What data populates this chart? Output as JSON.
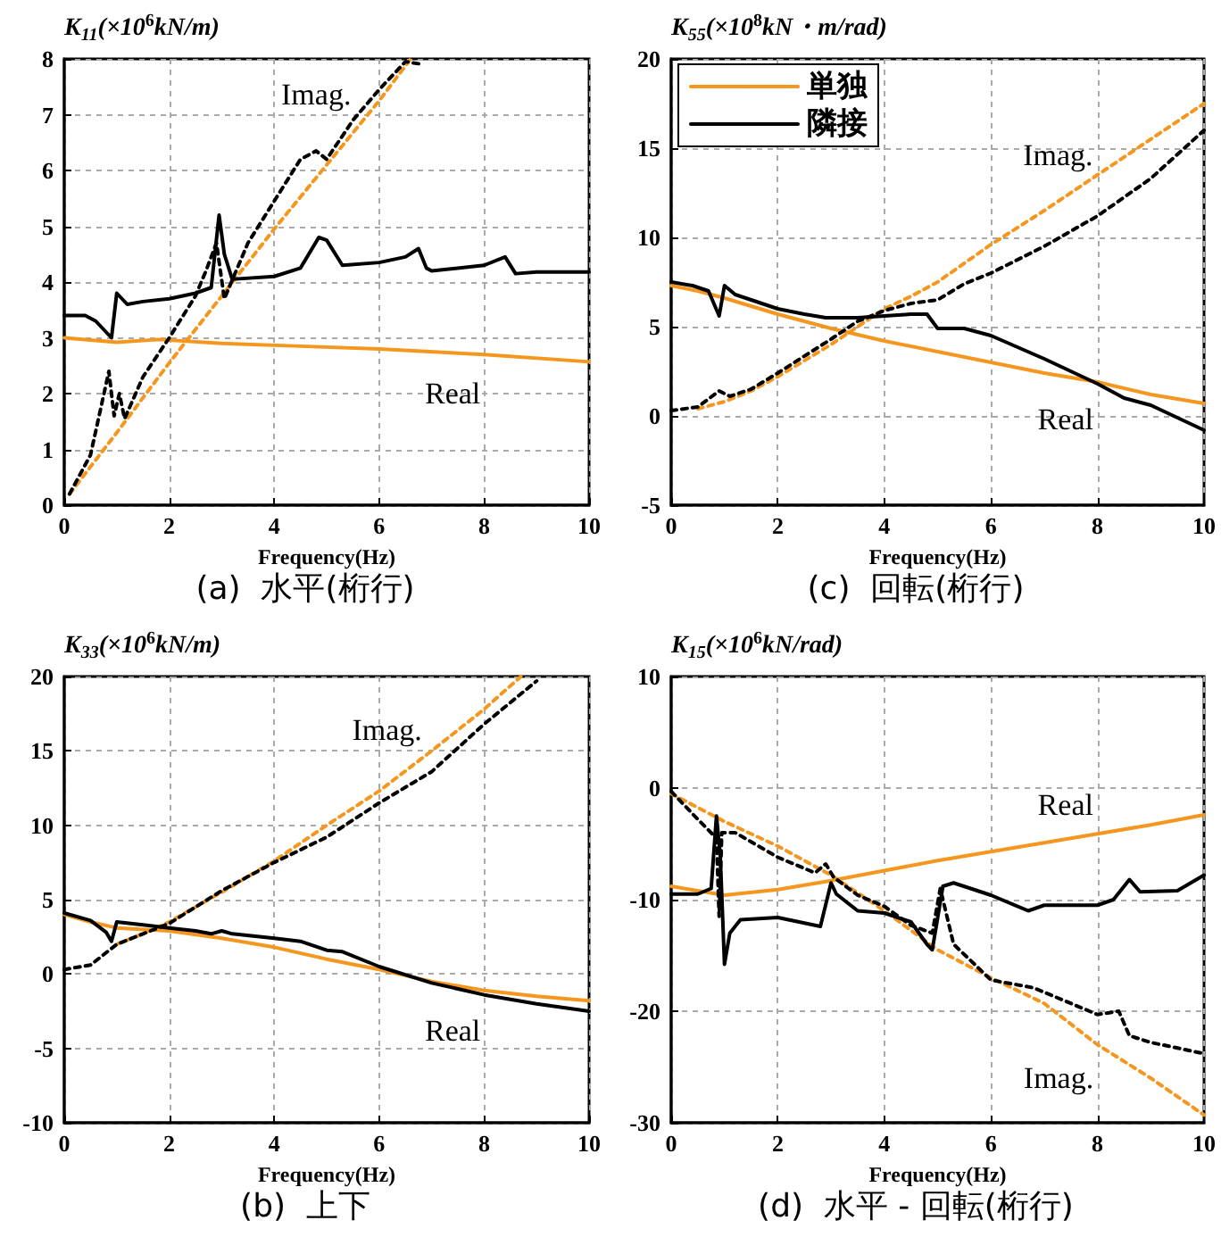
{
  "chart_data": [
    {
      "type": "line",
      "title": "(a)  水平(桁行)",
      "xlabel": "Frequency(Hz)",
      "ylabel": "K$_{11}$(×10$^{6}$kN/m)",
      "xlim": [
        0,
        10
      ],
      "xticks": [
        0,
        2,
        4,
        6,
        8,
        10
      ],
      "ylim": [
        0,
        8
      ],
      "yticks": [
        0,
        1,
        2,
        3,
        4,
        5,
        6,
        7,
        8
      ],
      "grid": true,
      "marker": "none",
      "legend": false,
      "annotations": [
        "Imag.",
        "Real"
      ],
      "series": [
        {
          "color": "#f5961e",
          "line_style": "solid",
          "x": [
            0,
            1,
            1.8,
            3,
            4.5,
            6,
            8,
            10
          ],
          "values": [
            3.0,
            2.92,
            2.97,
            2.9,
            2.85,
            2.8,
            2.7,
            2.57
          ]
        },
        {
          "color": "#f5961e",
          "line_style": "dashed",
          "x": [
            0.1,
            1,
            2,
            3,
            4,
            5,
            6,
            6.6
          ],
          "values": [
            0.2,
            1.3,
            2.55,
            3.75,
            4.95,
            6.1,
            7.25,
            8.0
          ]
        },
        {
          "color": "#000000",
          "line_style": "solid",
          "x": [
            0,
            0.4,
            0.6,
            0.9,
            1.0,
            1.2,
            1.5,
            2,
            2.5,
            2.8,
            2.95,
            3.05,
            3.2,
            4,
            4.5,
            4.85,
            5.0,
            5.3,
            6,
            6.5,
            6.75,
            6.9,
            7,
            8,
            8.4,
            8.6,
            9,
            10
          ],
          "values": [
            3.4,
            3.4,
            3.3,
            3.0,
            3.8,
            3.6,
            3.65,
            3.7,
            3.8,
            3.9,
            5.2,
            4.5,
            4.05,
            4.1,
            4.25,
            4.8,
            4.75,
            4.3,
            4.35,
            4.45,
            4.6,
            4.25,
            4.2,
            4.3,
            4.45,
            4.15,
            4.18,
            4.18
          ]
        },
        {
          "color": "#000000",
          "line_style": "dashed",
          "x": [
            0.1,
            0.5,
            0.85,
            0.95,
            1.05,
            1.15,
            1.5,
            2,
            2.5,
            2.7,
            2.9,
            3.05,
            3.5,
            4,
            4.5,
            4.8,
            5.0,
            5.5,
            6,
            6.5,
            6.85
          ],
          "values": [
            0.2,
            0.9,
            2.4,
            1.6,
            2.0,
            1.55,
            2.3,
            3.0,
            3.75,
            4.2,
            4.7,
            3.7,
            4.7,
            5.45,
            6.2,
            6.35,
            6.2,
            6.9,
            7.45,
            7.95,
            7.9
          ]
        }
      ]
    },
    {
      "type": "line",
      "title": "(c)  回転(桁行)",
      "xlabel": "Frequency(Hz)",
      "ylabel": "K$_{55}$(×10$^{8}$kN・m/rad)",
      "xlim": [
        0,
        10
      ],
      "xticks": [
        0,
        2,
        4,
        6,
        8,
        10
      ],
      "ylim": [
        -5,
        20
      ],
      "yticks": [
        -5,
        0,
        5,
        10,
        15,
        20
      ],
      "grid": true,
      "marker": "none",
      "legend": "top left",
      "annotations": [
        "Imag.",
        "Real"
      ],
      "series": [
        {
          "name": "単独",
          "color": "#f5961e",
          "line_style": "solid",
          "x": [
            0,
            0.5,
            1,
            2,
            3,
            4,
            5,
            6,
            7,
            8,
            9,
            10
          ],
          "values": [
            7.3,
            7.0,
            6.6,
            5.7,
            4.9,
            4.2,
            3.6,
            3.0,
            2.4,
            1.9,
            1.2,
            0.7
          ]
        },
        {
          "color": "#f5961e",
          "line_style": "dashed",
          "x": [
            0.5,
            1,
            1.5,
            2,
            3,
            3.5,
            4,
            4.5,
            5,
            6,
            7,
            8,
            9,
            10
          ],
          "values": [
            0.4,
            0.8,
            1.4,
            2.2,
            4.0,
            5.0,
            6.0,
            6.7,
            7.5,
            9.6,
            11.5,
            13.5,
            15.5,
            17.5
          ]
        },
        {
          "name": "隣接",
          "color": "#000000",
          "line_style": "solid",
          "x": [
            0,
            0.4,
            0.7,
            0.9,
            1.0,
            1.2,
            1.5,
            2,
            2.5,
            2.9,
            3.5,
            4,
            4.5,
            4.8,
            5.0,
            5.5,
            6,
            7,
            8,
            8.5,
            9,
            9.5,
            10
          ],
          "values": [
            7.5,
            7.3,
            7.0,
            5.6,
            7.3,
            6.8,
            6.5,
            6.0,
            5.7,
            5.5,
            5.5,
            5.6,
            5.7,
            5.7,
            4.9,
            4.9,
            4.5,
            3.2,
            1.8,
            1.0,
            0.6,
            -0.1,
            -0.8
          ]
        },
        {
          "color": "#000000",
          "line_style": "dashed",
          "x": [
            0,
            0.5,
            0.9,
            1.1,
            1.5,
            2,
            3,
            3.5,
            4,
            4.5,
            5,
            5.5,
            6,
            7,
            8,
            9,
            10
          ],
          "values": [
            0.3,
            0.5,
            1.4,
            1.1,
            1.5,
            2.4,
            4.3,
            5.3,
            5.9,
            6.3,
            6.5,
            7.4,
            8.0,
            9.5,
            11.2,
            13.3,
            16.0
          ]
        }
      ]
    },
    {
      "type": "line",
      "title": "(b)  上下",
      "xlabel": "Frequency(Hz)",
      "ylabel": "K$_{33}$(×10$^{6}$kN/m)",
      "xlim": [
        0,
        10
      ],
      "xticks": [
        0,
        2,
        4,
        6,
        8,
        10
      ],
      "ylim": [
        -10,
        20
      ],
      "yticks": [
        -10,
        -5,
        0,
        5,
        10,
        15,
        20
      ],
      "grid": true,
      "marker": "none",
      "legend": false,
      "annotations": [
        "Imag.",
        "Real"
      ],
      "series": [
        {
          "color": "#f5961e",
          "line_style": "solid",
          "x": [
            0,
            0.5,
            1,
            2,
            3,
            4,
            5,
            6,
            7,
            8,
            9,
            10
          ],
          "values": [
            4.0,
            3.5,
            3.1,
            2.9,
            2.4,
            1.8,
            1.0,
            0.3,
            -0.5,
            -1.1,
            -1.5,
            -1.8
          ]
        },
        {
          "color": "#f5961e",
          "line_style": "dashed",
          "x": [
            1,
            1.5,
            2,
            3,
            4,
            5,
            6,
            7,
            8,
            8.7
          ],
          "values": [
            2.0,
            2.7,
            3.5,
            5.5,
            7.6,
            10.0,
            12.3,
            15.0,
            17.8,
            20
          ]
        },
        {
          "color": "#000000",
          "line_style": "solid",
          "x": [
            0,
            0.5,
            0.8,
            0.9,
            1.0,
            1.5,
            2,
            2.5,
            2.8,
            3.0,
            3.2,
            4,
            4.5,
            5,
            5.3,
            6,
            7,
            8,
            9,
            10
          ],
          "values": [
            4.1,
            3.6,
            2.8,
            2.2,
            3.5,
            3.3,
            3.1,
            2.9,
            2.7,
            2.9,
            2.7,
            2.4,
            2.2,
            1.6,
            1.5,
            0.5,
            -0.6,
            -1.4,
            -2.0,
            -2.5
          ]
        },
        {
          "color": "#000000",
          "line_style": "dashed",
          "x": [
            0,
            0.5,
            1,
            1.5,
            2,
            3,
            4,
            5,
            6,
            7,
            8,
            9
          ],
          "values": [
            0.3,
            0.6,
            2.0,
            2.7,
            3.4,
            5.6,
            7.5,
            9.2,
            11.5,
            13.6,
            16.8,
            19.7
          ]
        }
      ]
    },
    {
      "type": "line",
      "title": "(d)  水平 - 回転(桁行)",
      "xlabel": "Frequency(Hz)",
      "ylabel": "K$_{15}$(×10$^{6}$kN/rad)",
      "xlim": [
        0,
        10
      ],
      "xticks": [
        0,
        2,
        4,
        6,
        8,
        10
      ],
      "ylim": [
        -30,
        10
      ],
      "yticks": [
        -30,
        -20,
        -10,
        0,
        10
      ],
      "grid": true,
      "marker": "none",
      "legend": false,
      "annotations": [
        "Real",
        "Imag."
      ],
      "series": [
        {
          "color": "#f5961e",
          "line_style": "solid",
          "x": [
            0,
            1,
            2,
            3,
            4,
            5,
            6,
            7,
            8,
            9,
            10
          ],
          "values": [
            -8.8,
            -9.6,
            -9.1,
            -8.3,
            -7.4,
            -6.5,
            -5.7,
            -4.9,
            -4.1,
            -3.3,
            -2.4
          ]
        },
        {
          "color": "#f5961e",
          "line_style": "dashed",
          "x": [
            0,
            1,
            2,
            3,
            4,
            5,
            6,
            7,
            8,
            9,
            10
          ],
          "values": [
            -0.5,
            -3.0,
            -5.2,
            -7.8,
            -11.0,
            -14.5,
            -17.0,
            -19.3,
            -23.0,
            -26.0,
            -29.3
          ]
        },
        {
          "color": "#000000",
          "line_style": "solid",
          "x": [
            0,
            0.5,
            0.75,
            0.85,
            0.92,
            1.0,
            1.1,
            1.3,
            2,
            2.8,
            3.0,
            3.1,
            3.5,
            4,
            4.5,
            4.8,
            4.9,
            5.1,
            5.3,
            6,
            6.7,
            7,
            8,
            8.3,
            8.6,
            8.8,
            9.5,
            10
          ],
          "values": [
            -9.5,
            -9.5,
            -9.0,
            -2.5,
            -6,
            -15.8,
            -13,
            -11.8,
            -11.6,
            -12.4,
            -8.5,
            -9.5,
            -11.0,
            -11.2,
            -12.0,
            -14.0,
            -14.5,
            -8.8,
            -8.5,
            -9.6,
            -11.0,
            -10.5,
            -10.5,
            -10,
            -8.2,
            -9.3,
            -9.2,
            -7.8
          ]
        },
        {
          "color": "#000000",
          "line_style": "dashed",
          "x": [
            0,
            0.5,
            0.85,
            0.9,
            0.95,
            1.2,
            2,
            2.7,
            2.9,
            3.05,
            3.5,
            4,
            4.5,
            4.9,
            5.05,
            5.3,
            6,
            6.8,
            7,
            8,
            8.4,
            8.6,
            9,
            10
          ],
          "values": [
            -0.3,
            -2.8,
            -4.5,
            -11.5,
            -4,
            -4.0,
            -6.2,
            -7.6,
            -6.8,
            -8.0,
            -9.6,
            -10.6,
            -12.3,
            -13.0,
            -9.0,
            -14,
            -17.2,
            -17.9,
            -18.3,
            -20.3,
            -20.0,
            -22.2,
            -22.8,
            -23.8
          ]
        }
      ]
    }
  ]
}
